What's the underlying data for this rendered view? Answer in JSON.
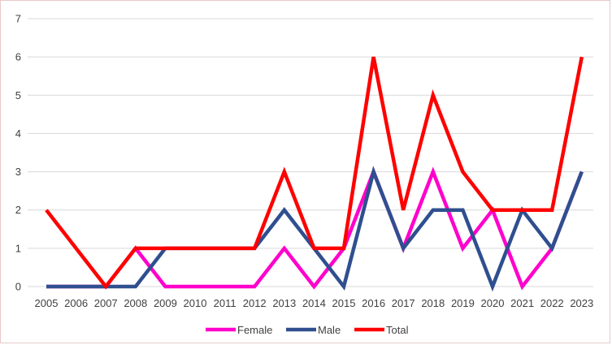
{
  "chart_data": {
    "type": "line",
    "title": "",
    "xlabel": "",
    "ylabel": "",
    "categories": [
      "2005",
      "2006",
      "2007",
      "2008",
      "2009",
      "2010",
      "2011",
      "2012",
      "2013",
      "2014",
      "2015",
      "2016",
      "2017",
      "2018",
      "2019",
      "2020",
      "2021",
      "2022",
      "2023"
    ],
    "ylim": [
      0,
      7
    ],
    "yticks": [
      0,
      1,
      2,
      3,
      4,
      5,
      6,
      7
    ],
    "grid": true,
    "legend": "bottom",
    "series": [
      {
        "name": "Female",
        "color": "#ff00cc",
        "values": [
          0,
          0,
          0,
          1,
          0,
          0,
          0,
          0,
          1,
          0,
          1,
          3,
          1,
          3,
          1,
          2,
          0,
          1,
          3
        ]
      },
      {
        "name": "Male",
        "color": "#2f4f8f",
        "values": [
          0,
          0,
          0,
          0,
          1,
          1,
          1,
          1,
          2,
          1,
          0,
          3,
          1,
          2,
          2,
          0,
          2,
          1,
          3
        ]
      },
      {
        "name": "Total",
        "color": "#ff0000",
        "values": [
          2,
          1,
          0,
          1,
          1,
          1,
          1,
          1,
          3,
          1,
          1,
          6,
          2,
          5,
          3,
          2,
          2,
          2,
          6
        ]
      }
    ]
  }
}
